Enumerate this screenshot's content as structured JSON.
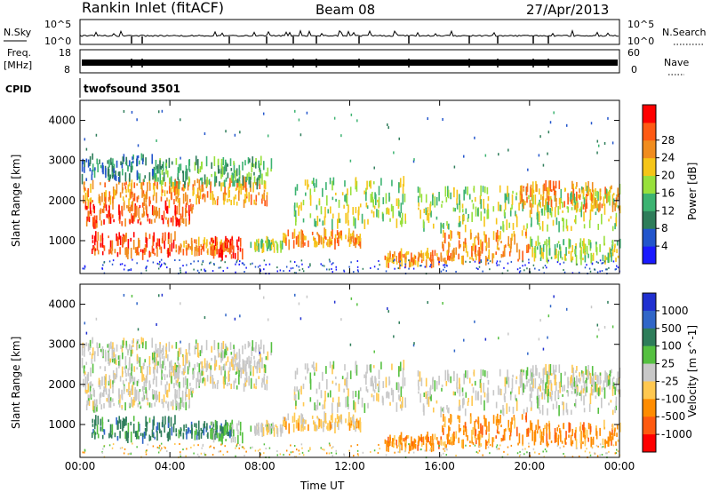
{
  "header": {
    "station": "Rankin Inlet (fitACF)",
    "beam": "Beam 08",
    "date": "27/Apr/2013"
  },
  "top_panels": {
    "nsky_label": "N.Sky",
    "nsky_ticks": [
      "10^5",
      "10^0"
    ],
    "nsearch_label": "N.Search",
    "nsearch_ticks": [
      "10^5",
      "10^0"
    ],
    "freq_label": "Freq.",
    "freq_unit": "[MHz]",
    "freq_ticks": [
      "18",
      "8"
    ],
    "nave_label": "Nave",
    "nave_ticks": [
      "60",
      "0"
    ],
    "cpid_label": "CPID",
    "cpid_value": "twofsound 3501"
  },
  "colors": {
    "power_scale": [
      "#1a1aff",
      "#2255cc",
      "#2e7d5a",
      "#3cb371",
      "#98e03c",
      "#f5c518",
      "#f08c1e",
      "#ff5a14",
      "#ff0000"
    ],
    "velocity_scale": [
      "#2030d0",
      "#3066c8",
      "#2e7d5a",
      "#55c040",
      "#c8c8c8",
      "#ffc850",
      "#ff8c00",
      "#ff5a10",
      "#ff0000"
    ]
  },
  "chart_data": [
    {
      "type": "heatmap",
      "title": "Power",
      "ylabel": "Slant Range [km]",
      "xlabel": "",
      "x_ticks": [
        "00:00",
        "04:00",
        "08:00",
        "12:00",
        "16:00",
        "20:00",
        "00:00"
      ],
      "y_ticks": [
        "1000",
        "2000",
        "3000",
        "4000"
      ],
      "ylim": [
        180,
        4500
      ],
      "colorbar_label": "Power [dB]",
      "colorbar_ticks": [
        "4",
        "8",
        "12",
        "16",
        "20",
        "24",
        "28"
      ],
      "colorbar_range": [
        0,
        30
      ]
    },
    {
      "type": "heatmap",
      "title": "Velocity",
      "ylabel": "Slant Range [km]",
      "xlabel": "Time UT",
      "x_ticks": [
        "00:00",
        "04:00",
        "08:00",
        "12:00",
        "16:00",
        "20:00",
        "00:00"
      ],
      "y_ticks": [
        "1000",
        "2000",
        "3000",
        "4000"
      ],
      "ylim": [
        180,
        4500
      ],
      "colorbar_label": "Velocity [m s^-1]",
      "colorbar_ticks": [
        "1000",
        "500",
        "100",
        "25",
        "-25",
        "-100",
        "-500",
        "-1000"
      ]
    }
  ]
}
